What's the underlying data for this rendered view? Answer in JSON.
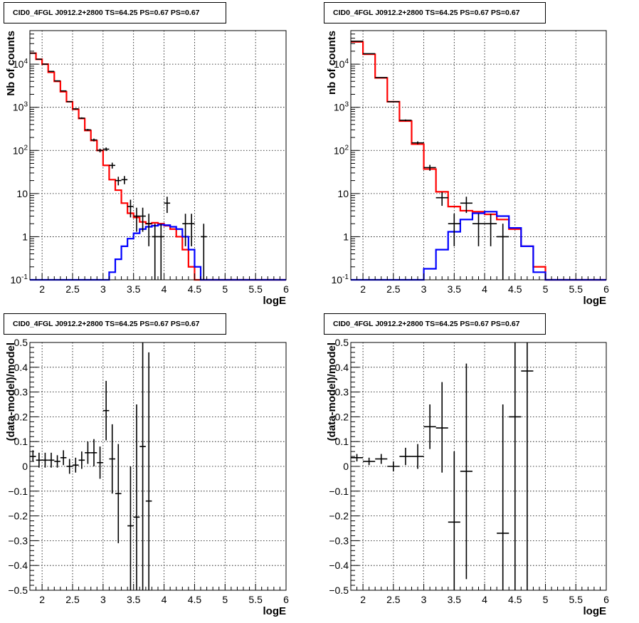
{
  "chart_data": [
    {
      "type": "histogram",
      "title": "CID0_4FGL J0912.2+2800 TS=64.25 PS=0.67 PS=0.67",
      "xlabel": "logE",
      "ylabel": "Nb of counts",
      "xlim": [
        1.8,
        6.0
      ],
      "ylim": [
        0.1,
        60000
      ],
      "yscale": "log",
      "grid": true,
      "xticks": [
        "2",
        "2.5",
        "3",
        "3.5",
        "4",
        "4.5",
        "5",
        "5.5",
        "6"
      ],
      "yticks": [
        "10^-1",
        "1",
        "10",
        "10^2",
        "10^3",
        "10^4"
      ],
      "bin_edges": [
        1.8,
        1.9,
        2.0,
        2.1,
        2.2,
        2.3,
        2.4,
        2.5,
        2.6,
        2.7,
        2.8,
        2.9,
        3.0,
        3.1,
        3.2,
        3.3,
        3.4,
        3.5,
        3.6,
        3.7,
        3.8,
        3.9,
        4.0,
        4.1,
        4.2,
        4.3,
        4.4,
        4.5,
        4.6,
        4.7,
        4.8,
        4.9,
        5.0,
        5.1,
        5.2,
        5.3,
        5.4,
        5.5,
        5.6,
        5.7,
        5.8,
        5.9,
        6.0
      ],
      "series": [
        {
          "color": "#ff0000",
          "values": [
            18000,
            13000,
            10000,
            6500,
            4000,
            2300,
            1350,
            900,
            550,
            290,
            170,
            100,
            45,
            21,
            12,
            6,
            3.5,
            2.8,
            2.2,
            2.0,
            2.1,
            2.0,
            1.8,
            1.5,
            1.0,
            0.5,
            0.2,
            0.1,
            0.1,
            0.1,
            0.1,
            0.1,
            0.1,
            0.1,
            0.1,
            0.1,
            0.1,
            0.1,
            0.1,
            0.1,
            0.1,
            0.1
          ]
        },
        {
          "color": "#0000ff",
          "values": [
            0.1,
            0.1,
            0.1,
            0.1,
            0.1,
            0.1,
            0.1,
            0.1,
            0.1,
            0.1,
            0.1,
            0.1,
            0.1,
            0.15,
            0.3,
            0.6,
            0.9,
            1.2,
            1.5,
            1.7,
            1.8,
            1.9,
            1.85,
            1.7,
            1.5,
            1.0,
            0.5,
            0.2,
            0.1,
            0.1,
            0.1,
            0.1,
            0.1,
            0.1,
            0.1,
            0.1,
            0.1,
            0.1,
            0.1,
            0.1,
            0.1,
            0.1
          ]
        }
      ],
      "points": [
        {
          "x": 1.85,
          "y": 18000,
          "lo": 17800,
          "hi": 18200
        },
        {
          "x": 1.95,
          "y": 13000,
          "lo": 12850,
          "hi": 13150
        },
        {
          "x": 2.05,
          "y": 10000,
          "lo": 9850,
          "hi": 10150
        },
        {
          "x": 2.15,
          "y": 6800,
          "lo": 6700,
          "hi": 6900
        },
        {
          "x": 2.25,
          "y": 4100,
          "lo": 4000,
          "hi": 4200
        },
        {
          "x": 2.35,
          "y": 2400,
          "lo": 2350,
          "hi": 2450
        },
        {
          "x": 2.45,
          "y": 1350,
          "lo": 1310,
          "hi": 1390
        },
        {
          "x": 2.55,
          "y": 920,
          "lo": 890,
          "hi": 950
        },
        {
          "x": 2.65,
          "y": 560,
          "lo": 540,
          "hi": 585
        },
        {
          "x": 2.75,
          "y": 300,
          "lo": 285,
          "hi": 315
        },
        {
          "x": 2.85,
          "y": 175,
          "lo": 162,
          "hi": 188
        },
        {
          "x": 2.95,
          "y": 100,
          "lo": 90,
          "hi": 110
        },
        {
          "x": 3.05,
          "y": 107,
          "lo": 97,
          "hi": 117
        },
        {
          "x": 3.15,
          "y": 45,
          "lo": 38,
          "hi": 52
        },
        {
          "x": 3.25,
          "y": 20,
          "lo": 15.5,
          "hi": 24.5
        },
        {
          "x": 3.35,
          "y": 21,
          "lo": 16.5,
          "hi": 25.5
        },
        {
          "x": 3.45,
          "y": 5,
          "lo": 2.8,
          "hi": 7.2
        },
        {
          "x": 3.55,
          "y": 3,
          "lo": 1.3,
          "hi": 4.7
        },
        {
          "x": 3.65,
          "y": 3,
          "lo": 1.3,
          "hi": 4.7
        },
        {
          "x": 3.75,
          "y": 2,
          "lo": 0.6,
          "hi": 3.4
        },
        {
          "x": 3.85,
          "y": 1,
          "lo": 0.1,
          "hi": 2.0
        },
        {
          "x": 3.95,
          "y": 1,
          "lo": 0.1,
          "hi": 2.0
        },
        {
          "x": 4.05,
          "y": 6,
          "lo": 3.55,
          "hi": 8.45
        },
        {
          "x": 4.35,
          "y": 2,
          "lo": 0.6,
          "hi": 3.4
        },
        {
          "x": 4.45,
          "y": 2,
          "lo": 0.6,
          "hi": 3.4
        },
        {
          "x": 4.65,
          "y": 1,
          "lo": 0.1,
          "hi": 2.0
        }
      ],
      "point_width": 0.1
    },
    {
      "type": "histogram",
      "title": "CID0_4FGL J0912.2+2800 TS=64.25 PS=0.67 PS=0.67",
      "xlabel": "logE",
      "ylabel": "nb of counts",
      "xlim": [
        1.8,
        6.0
      ],
      "ylim": [
        0.1,
        60000
      ],
      "yscale": "log",
      "grid": true,
      "xticks": [
        "2",
        "2.5",
        "3",
        "3.5",
        "4",
        "4.5",
        "5",
        "5.5",
        "6"
      ],
      "yticks": [
        "10^-1",
        "1",
        "10",
        "10^2",
        "10^3",
        "10^4"
      ],
      "bin_edges": [
        1.8,
        2.0,
        2.2,
        2.4,
        2.6,
        2.8,
        3.0,
        3.2,
        3.4,
        3.6,
        3.8,
        4.0,
        4.2,
        4.4,
        4.6,
        4.8,
        5.0,
        5.2,
        5.4,
        5.6,
        5.8,
        6.0
      ],
      "series": [
        {
          "color": "#ff0000",
          "values": [
            33000,
            17000,
            4800,
            1350,
            480,
            140,
            37,
            11,
            5,
            4,
            3.8,
            3.3,
            2.5,
            1.5,
            0.6,
            0.2,
            0.1,
            0.1,
            0.1,
            0.1,
            0.1
          ]
        },
        {
          "color": "#0000ff",
          "values": [
            0.1,
            0.1,
            0.1,
            0.1,
            0.1,
            0.1,
            0.18,
            0.5,
            1.3,
            2.5,
            3.5,
            3.8,
            3.0,
            1.6,
            0.6,
            0.15,
            0.1,
            0.1,
            0.1,
            0.1,
            0.1
          ]
        }
      ],
      "points": [
        {
          "x": 1.9,
          "y": 34000,
          "lo": 33800,
          "hi": 34200
        },
        {
          "x": 2.1,
          "y": 17500,
          "lo": 17350,
          "hi": 17650
        },
        {
          "x": 2.3,
          "y": 4900,
          "lo": 4830,
          "hi": 4970
        },
        {
          "x": 2.5,
          "y": 1350,
          "lo": 1313,
          "hi": 1387
        },
        {
          "x": 2.7,
          "y": 500,
          "lo": 478,
          "hi": 522
        },
        {
          "x": 2.9,
          "y": 150,
          "lo": 138,
          "hi": 162
        },
        {
          "x": 3.1,
          "y": 40,
          "lo": 33.7,
          "hi": 46.3
        },
        {
          "x": 3.3,
          "y": 8,
          "lo": 5.2,
          "hi": 10.8
        },
        {
          "x": 3.5,
          "y": 2,
          "lo": 0.6,
          "hi": 3.4
        },
        {
          "x": 3.7,
          "y": 6,
          "lo": 3.55,
          "hi": 8.45
        },
        {
          "x": 3.9,
          "y": 2,
          "lo": 0.6,
          "hi": 3.4
        },
        {
          "x": 4.1,
          "y": 2,
          "lo": 0.6,
          "hi": 3.4
        },
        {
          "x": 4.3,
          "y": 1,
          "lo": 0.1,
          "hi": 2.0
        }
      ],
      "point_width": 0.2
    },
    {
      "type": "scatter",
      "title": "CID0_4FGL J0912.2+2800 TS=64.25 PS=0.67 PS=0.67",
      "xlabel": "logE",
      "ylabel": "(data-model)/model",
      "xlim": [
        1.8,
        6.0
      ],
      "ylim": [
        -0.5,
        0.5
      ],
      "grid": true,
      "xticks": [
        "2",
        "2.5",
        "3",
        "3.5",
        "4",
        "4.5",
        "5",
        "5.5",
        "6"
      ],
      "yticks": [
        "-0.5",
        "-0.4",
        "-0.3",
        "-0.2",
        "-0.1",
        "0",
        "0.1",
        "0.2",
        "0.3",
        "0.4",
        "0.5"
      ],
      "points": [
        {
          "x": 1.85,
          "y": 0.04,
          "lo": 0.02,
          "hi": 0.065
        },
        {
          "x": 1.95,
          "y": 0.025,
          "lo": -0.005,
          "hi": 0.055
        },
        {
          "x": 2.05,
          "y": 0.025,
          "lo": -0.005,
          "hi": 0.055
        },
        {
          "x": 2.15,
          "y": 0.025,
          "lo": -0.005,
          "hi": 0.055
        },
        {
          "x": 2.25,
          "y": 0.02,
          "lo": -0.005,
          "hi": 0.045
        },
        {
          "x": 2.35,
          "y": 0.035,
          "lo": 0.005,
          "hi": 0.065
        },
        {
          "x": 2.45,
          "y": 0.0,
          "lo": -0.03,
          "hi": 0.03
        },
        {
          "x": 2.55,
          "y": 0.005,
          "lo": -0.025,
          "hi": 0.035
        },
        {
          "x": 2.65,
          "y": 0.025,
          "lo": -0.01,
          "hi": 0.06
        },
        {
          "x": 2.75,
          "y": 0.055,
          "lo": 0.01,
          "hi": 0.1
        },
        {
          "x": 2.85,
          "y": 0.055,
          "lo": 0.0,
          "hi": 0.11
        },
        {
          "x": 2.95,
          "y": 0.015,
          "lo": -0.05,
          "hi": 0.08
        },
        {
          "x": 3.05,
          "y": 0.225,
          "lo": 0.105,
          "hi": 0.345
        },
        {
          "x": 3.15,
          "y": 0.03,
          "lo": -0.11,
          "hi": 0.17
        },
        {
          "x": 3.25,
          "y": -0.11,
          "lo": -0.31,
          "hi": 0.09
        },
        {
          "x": 3.45,
          "y": -0.24,
          "lo": -0.5,
          "hi": 0.0
        },
        {
          "x": 3.55,
          "y": -0.205,
          "lo": -0.5,
          "hi": 0.25
        },
        {
          "x": 3.65,
          "y": 0.08,
          "lo": -0.5,
          "hi": 0.5
        },
        {
          "x": 3.75,
          "y": -0.14,
          "lo": -0.5,
          "hi": 0.46
        }
      ],
      "point_width": 0.1
    },
    {
      "type": "scatter",
      "title": "CID0_4FGL J0912.2+2800 TS=64.25 PS=0.67 PS=0.67",
      "xlabel": "logE",
      "ylabel": "(data-model)/model",
      "xlim": [
        1.8,
        6.0
      ],
      "ylim": [
        -0.5,
        0.5
      ],
      "grid": true,
      "xticks": [
        "2",
        "2.5",
        "3",
        "3.5",
        "4",
        "4.5",
        "5",
        "5.5",
        "6"
      ],
      "yticks": [
        "-0.5",
        "-0.4",
        "-0.3",
        "-0.2",
        "-0.1",
        "0",
        "0.1",
        "0.2",
        "0.3",
        "0.4",
        "0.5"
      ],
      "points": [
        {
          "x": 1.9,
          "y": 0.035,
          "lo": 0.02,
          "hi": 0.05
        },
        {
          "x": 2.1,
          "y": 0.02,
          "lo": 0.005,
          "hi": 0.035
        },
        {
          "x": 2.3,
          "y": 0.03,
          "lo": 0.01,
          "hi": 0.05
        },
        {
          "x": 2.5,
          "y": 0.0,
          "lo": -0.02,
          "hi": 0.02
        },
        {
          "x": 2.7,
          "y": 0.04,
          "lo": 0.005,
          "hi": 0.075
        },
        {
          "x": 2.9,
          "y": 0.04,
          "lo": -0.01,
          "hi": 0.09
        },
        {
          "x": 3.1,
          "y": 0.16,
          "lo": 0.07,
          "hi": 0.25
        },
        {
          "x": 3.3,
          "y": 0.155,
          "lo": -0.025,
          "hi": 0.34
        },
        {
          "x": 3.5,
          "y": -0.225,
          "lo": -0.5,
          "hi": 0.06
        },
        {
          "x": 3.7,
          "y": -0.02,
          "lo": -0.455,
          "hi": 0.415
        },
        {
          "x": 4.3,
          "y": -0.27,
          "lo": -0.5,
          "hi": 0.25
        },
        {
          "x": 4.5,
          "y": 0.2,
          "lo": -0.5,
          "hi": 0.5
        },
        {
          "x": 4.7,
          "y": 0.385,
          "lo": -0.5,
          "hi": 0.5
        }
      ],
      "point_width": 0.2
    }
  ]
}
